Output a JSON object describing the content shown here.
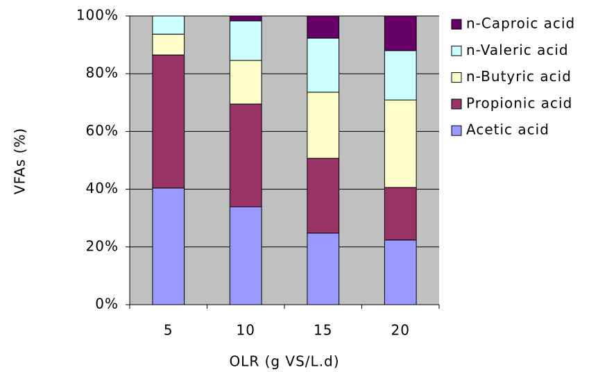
{
  "chart_data": {
    "type": "stacked_bar",
    "x_label": "OLR (g VS/L.d)",
    "y_label": "VFAs (%)",
    "categories": [
      "5",
      "10",
      "15",
      "20"
    ],
    "series": [
      {
        "name": "Acetic acid",
        "color": "#9999ff",
        "values": [
          40.4,
          33.9,
          24.8,
          22.4
        ]
      },
      {
        "name": "Propionic acid",
        "color": "#993366",
        "values": [
          46.1,
          35.6,
          25.9,
          18.2
        ]
      },
      {
        "name": "n-Butyric acid",
        "color": "#ffffcc",
        "values": [
          7.2,
          15.1,
          22.9,
          30.3
        ]
      },
      {
        "name": "n-Valeric acid",
        "color": "#ccffff",
        "values": [
          6.3,
          13.7,
          18.7,
          17.1
        ]
      },
      {
        "name": "n-Caproic acid",
        "color": "#660066",
        "values": [
          0,
          1.7,
          7.7,
          12.0
        ]
      }
    ],
    "ylim": [
      0,
      100
    ],
    "yticks": [
      {
        "value": 0,
        "label": "0%"
      },
      {
        "value": 20,
        "label": "20%"
      },
      {
        "value": 40,
        "label": "40%"
      },
      {
        "value": 60,
        "label": "60%"
      },
      {
        "value": 80,
        "label": "80%"
      },
      {
        "value": 100,
        "label": "100%"
      }
    ],
    "grid": true,
    "plot_background": "#c0c0c0",
    "legend": "right"
  }
}
